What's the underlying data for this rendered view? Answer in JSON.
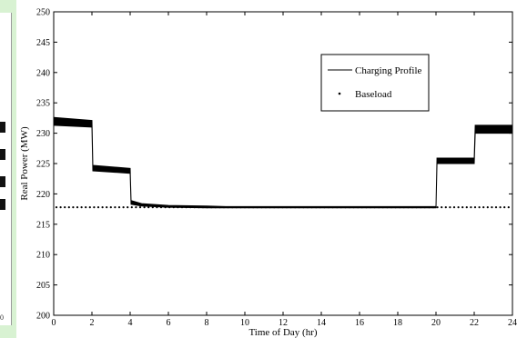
{
  "chart_data": {
    "type": "line",
    "xlabel": "Time of Day (hr)",
    "ylabel": "Real Power (MW)",
    "xlim": [
      0,
      24
    ],
    "ylim": [
      200,
      250
    ],
    "xticks": [
      "0",
      "2",
      "4",
      "6",
      "8",
      "10",
      "12",
      "14",
      "16",
      "18",
      "20",
      "22",
      "24"
    ],
    "yticks": [
      "200",
      "205",
      "210",
      "215",
      "220",
      "225",
      "230",
      "235",
      "240",
      "245",
      "250"
    ],
    "grid": false,
    "legend_position": "top-right",
    "series": [
      {
        "name": "Charging Profile",
        "style": "band",
        "color": "#000000",
        "x": [
          0,
          2,
          2.05,
          4,
          4.05,
          4.6,
          6,
          8,
          9,
          10,
          20,
          20.05,
          22,
          22.05,
          24
        ],
        "upper": [
          232.6,
          232.1,
          224.7,
          224.2,
          218.9,
          218.4,
          218.1,
          218.0,
          217.9,
          217.9,
          217.9,
          225.9,
          225.9,
          231.3,
          231.3
        ],
        "lower": [
          231.3,
          231.0,
          223.8,
          223.4,
          218.3,
          218.0,
          217.8,
          217.7,
          217.7,
          217.7,
          217.7,
          225.0,
          225.0,
          230.0,
          230.0
        ]
      },
      {
        "name": "Baseload",
        "style": "dotted",
        "color": "#000000",
        "value": 217.8
      }
    ]
  },
  "left_panel": {
    "tick_label": "0"
  }
}
